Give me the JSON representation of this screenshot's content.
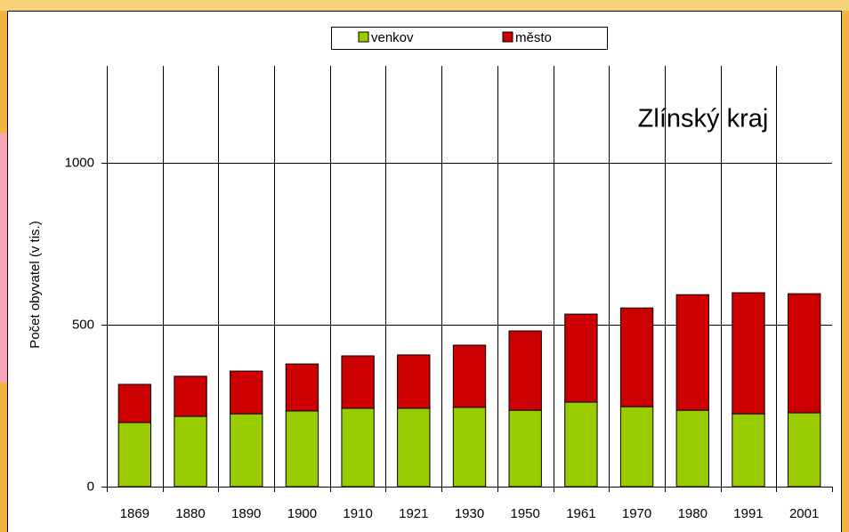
{
  "chart_data": {
    "type": "stacked-bar",
    "annotation": "Zlínský kraj",
    "y_label": "Počet obyvatel (v tis.)",
    "categories": [
      "1869",
      "1880",
      "1890",
      "1900",
      "1910",
      "1921",
      "1930",
      "1950",
      "1961",
      "1970",
      "1980",
      "1991",
      "2001"
    ],
    "series": [
      {
        "name": "venkov",
        "color": "#99cc00",
        "values": [
          198,
          217,
          225,
          234,
          242,
          242,
          245,
          236,
          261,
          247,
          236,
          225,
          228
        ]
      },
      {
        "name": "město",
        "color": "#cc0000",
        "values": [
          118,
          124,
          132,
          145,
          162,
          165,
          192,
          245,
          272,
          305,
          357,
          374,
          368
        ]
      }
    ],
    "ylim": [
      0,
      1300
    ],
    "yticks": [
      0,
      500,
      1000
    ],
    "grid": true,
    "annotation_color": "#333399"
  }
}
